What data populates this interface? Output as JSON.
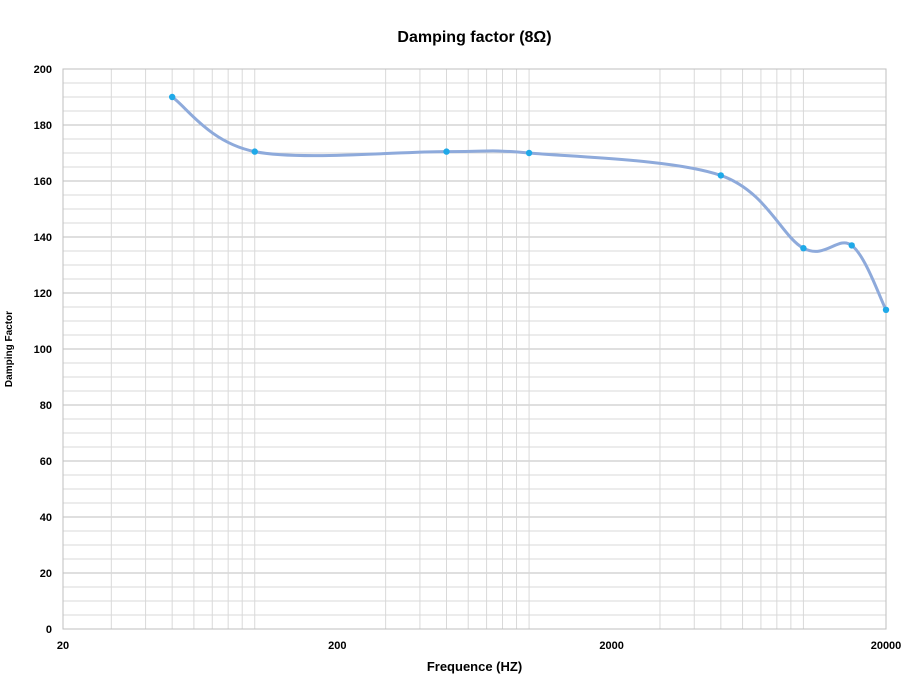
{
  "chart_data": {
    "type": "line",
    "title": "Damping factor (8Ω)",
    "xlabel": "Frequence (HZ)",
    "ylabel": "Damping Factor",
    "x_scale": "log",
    "xlim": [
      20,
      20000
    ],
    "ylim": [
      0,
      200
    ],
    "x_ticks": [
      "20",
      "200",
      "2000",
      "20000"
    ],
    "y_ticks": [
      "0",
      "20",
      "40",
      "60",
      "80",
      "100",
      "120",
      "140",
      "160",
      "180",
      "200"
    ],
    "grid": true,
    "smooth": true,
    "series": [
      {
        "x": [
          50,
          100,
          500,
          1000,
          5000,
          10000,
          15000,
          20000
        ],
        "y": [
          190,
          170.5,
          170.5,
          170,
          162,
          136,
          137,
          114
        ]
      }
    ],
    "colors": {
      "line": "#8eaadb",
      "marker": "#1fa9e8",
      "grid": "#d9d9d9",
      "major_grid": "#bfbfbf",
      "axis": "#bfbfbf"
    }
  }
}
